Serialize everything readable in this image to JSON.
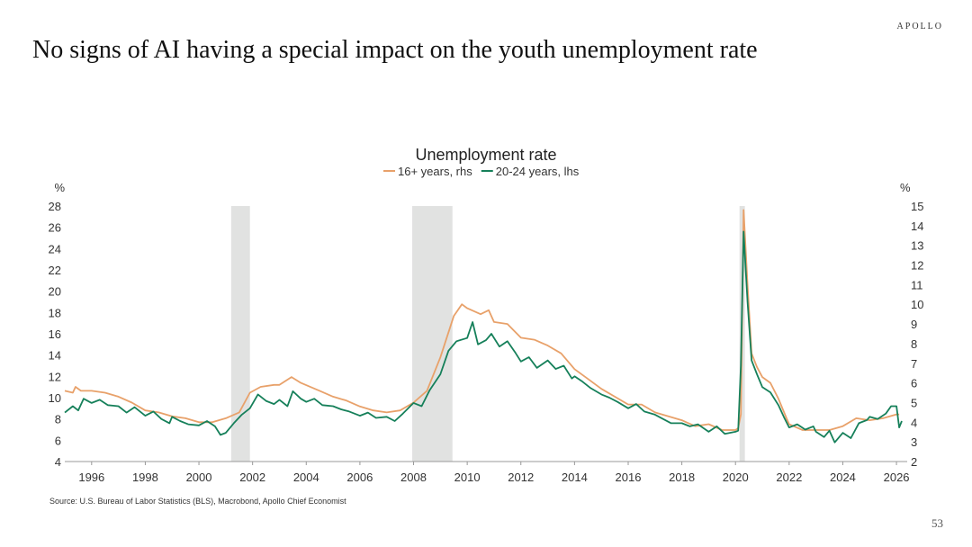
{
  "header": {
    "brand": "APOLLO",
    "title": "No signs of AI having a special impact on the youth unemployment rate"
  },
  "footer": {
    "source": "Source: U.S. Bureau of Labor Statistics (BLS), Macrobond, Apollo Chief Economist",
    "page_number": "53"
  },
  "colors": {
    "series_16plus": "#e8a16a",
    "series_20_24": "#16805a",
    "recession": "#e1e2e1",
    "axis": "#999999"
  },
  "chart_data": {
    "type": "line",
    "title": "Unemployment rate",
    "left_axis": {
      "unit": "%",
      "ticks": [
        4,
        6,
        8,
        10,
        12,
        14,
        16,
        18,
        20,
        22,
        24,
        26,
        28
      ],
      "ylim": [
        4,
        28
      ]
    },
    "right_axis": {
      "unit": "%",
      "ticks": [
        2,
        3,
        4,
        5,
        6,
        7,
        8,
        9,
        10,
        11,
        12,
        13,
        14,
        15
      ],
      "ylim": [
        2,
        15
      ]
    },
    "x_axis": {
      "ticks": [
        "1996",
        "1998",
        "2000",
        "2002",
        "2004",
        "2006",
        "2008",
        "2010",
        "2012",
        "2014",
        "2016",
        "2018",
        "2020",
        "2022",
        "2024",
        "2026"
      ],
      "xlim": [
        1995.0,
        2026.4
      ]
    },
    "recessions": [
      {
        "start": 2001.2,
        "end": 2001.9
      },
      {
        "start": 2007.95,
        "end": 2009.45
      },
      {
        "start": 2020.15,
        "end": 2020.35
      }
    ],
    "series": [
      {
        "name": "16+ years, rhs",
        "axis": "right",
        "points": [
          [
            1995.0,
            5.6
          ],
          [
            1995.3,
            5.5
          ],
          [
            1995.4,
            5.8
          ],
          [
            1995.6,
            5.6
          ],
          [
            1996.0,
            5.6
          ],
          [
            1996.5,
            5.5
          ],
          [
            1997.0,
            5.3
          ],
          [
            1997.5,
            5.0
          ],
          [
            1998.0,
            4.6
          ],
          [
            1998.5,
            4.5
          ],
          [
            1999.0,
            4.3
          ],
          [
            1999.5,
            4.2
          ],
          [
            2000.0,
            4.0
          ],
          [
            2000.5,
            4.0
          ],
          [
            2001.0,
            4.2
          ],
          [
            2001.5,
            4.5
          ],
          [
            2001.9,
            5.5
          ],
          [
            2002.3,
            5.8
          ],
          [
            2002.8,
            5.9
          ],
          [
            2003.0,
            5.9
          ],
          [
            2003.45,
            6.3
          ],
          [
            2003.8,
            6.0
          ],
          [
            2004.5,
            5.6
          ],
          [
            2005.0,
            5.3
          ],
          [
            2005.5,
            5.1
          ],
          [
            2006.0,
            4.8
          ],
          [
            2006.5,
            4.6
          ],
          [
            2007.0,
            4.5
          ],
          [
            2007.5,
            4.6
          ],
          [
            2008.0,
            5.0
          ],
          [
            2008.5,
            5.6
          ],
          [
            2009.0,
            7.3
          ],
          [
            2009.5,
            9.4
          ],
          [
            2009.8,
            10.0
          ],
          [
            2010.0,
            9.8
          ],
          [
            2010.5,
            9.5
          ],
          [
            2010.8,
            9.7
          ],
          [
            2011.0,
            9.1
          ],
          [
            2011.5,
            9.0
          ],
          [
            2012.0,
            8.3
          ],
          [
            2012.5,
            8.2
          ],
          [
            2013.0,
            7.9
          ],
          [
            2013.5,
            7.5
          ],
          [
            2014.0,
            6.7
          ],
          [
            2014.5,
            6.2
          ],
          [
            2015.0,
            5.7
          ],
          [
            2015.5,
            5.3
          ],
          [
            2016.0,
            4.9
          ],
          [
            2016.5,
            4.9
          ],
          [
            2017.0,
            4.5
          ],
          [
            2017.5,
            4.3
          ],
          [
            2018.0,
            4.1
          ],
          [
            2018.5,
            3.8
          ],
          [
            2019.0,
            3.9
          ],
          [
            2019.5,
            3.6
          ],
          [
            2020.0,
            3.6
          ],
          [
            2020.1,
            3.7
          ],
          [
            2020.2,
            4.4
          ],
          [
            2020.3,
            14.8
          ],
          [
            2020.45,
            11.0
          ],
          [
            2020.6,
            7.5
          ],
          [
            2020.8,
            6.8
          ],
          [
            2021.0,
            6.3
          ],
          [
            2021.3,
            6.0
          ],
          [
            2021.6,
            5.2
          ],
          [
            2021.9,
            4.2
          ],
          [
            2022.0,
            3.9
          ],
          [
            2022.5,
            3.6
          ],
          [
            2023.0,
            3.6
          ],
          [
            2023.5,
            3.6
          ],
          [
            2024.0,
            3.8
          ],
          [
            2024.5,
            4.2
          ],
          [
            2025.0,
            4.1
          ],
          [
            2025.5,
            4.2
          ],
          [
            2026.0,
            4.4
          ],
          [
            2026.1,
            4.4
          ]
        ]
      },
      {
        "name": "20-24 years, lhs",
        "axis": "left",
        "points": [
          [
            1995.0,
            8.6
          ],
          [
            1995.3,
            9.2
          ],
          [
            1995.5,
            8.8
          ],
          [
            1995.7,
            9.9
          ],
          [
            1996.0,
            9.5
          ],
          [
            1996.3,
            9.8
          ],
          [
            1996.6,
            9.3
          ],
          [
            1997.0,
            9.2
          ],
          [
            1997.3,
            8.6
          ],
          [
            1997.6,
            9.1
          ],
          [
            1998.0,
            8.3
          ],
          [
            1998.3,
            8.7
          ],
          [
            1998.6,
            8.0
          ],
          [
            1998.9,
            7.6
          ],
          [
            1999.0,
            8.2
          ],
          [
            1999.3,
            7.8
          ],
          [
            1999.6,
            7.5
          ],
          [
            2000.0,
            7.4
          ],
          [
            2000.3,
            7.8
          ],
          [
            2000.6,
            7.3
          ],
          [
            2000.8,
            6.5
          ],
          [
            2001.0,
            6.7
          ],
          [
            2001.3,
            7.6
          ],
          [
            2001.6,
            8.4
          ],
          [
            2001.9,
            9.0
          ],
          [
            2002.2,
            10.3
          ],
          [
            2002.5,
            9.7
          ],
          [
            2002.8,
            9.4
          ],
          [
            2003.0,
            9.8
          ],
          [
            2003.3,
            9.2
          ],
          [
            2003.5,
            10.6
          ],
          [
            2003.8,
            9.9
          ],
          [
            2004.0,
            9.6
          ],
          [
            2004.3,
            9.9
          ],
          [
            2004.6,
            9.3
          ],
          [
            2005.0,
            9.2
          ],
          [
            2005.3,
            8.9
          ],
          [
            2005.6,
            8.7
          ],
          [
            2006.0,
            8.3
          ],
          [
            2006.3,
            8.6
          ],
          [
            2006.6,
            8.1
          ],
          [
            2007.0,
            8.2
          ],
          [
            2007.3,
            7.8
          ],
          [
            2007.6,
            8.5
          ],
          [
            2008.0,
            9.5
          ],
          [
            2008.3,
            9.2
          ],
          [
            2008.6,
            10.7
          ],
          [
            2009.0,
            12.2
          ],
          [
            2009.3,
            14.4
          ],
          [
            2009.6,
            15.3
          ],
          [
            2010.0,
            15.6
          ],
          [
            2010.2,
            17.1
          ],
          [
            2010.4,
            15.0
          ],
          [
            2010.7,
            15.4
          ],
          [
            2010.9,
            16.0
          ],
          [
            2011.2,
            14.8
          ],
          [
            2011.5,
            15.3
          ],
          [
            2011.8,
            14.2
          ],
          [
            2012.0,
            13.4
          ],
          [
            2012.3,
            13.8
          ],
          [
            2012.6,
            12.8
          ],
          [
            2013.0,
            13.5
          ],
          [
            2013.3,
            12.7
          ],
          [
            2013.6,
            13.0
          ],
          [
            2013.9,
            11.8
          ],
          [
            2014.0,
            12.0
          ],
          [
            2014.3,
            11.5
          ],
          [
            2014.6,
            10.9
          ],
          [
            2015.0,
            10.3
          ],
          [
            2015.3,
            10.0
          ],
          [
            2015.6,
            9.6
          ],
          [
            2016.0,
            9.0
          ],
          [
            2016.3,
            9.4
          ],
          [
            2016.6,
            8.7
          ],
          [
            2017.0,
            8.4
          ],
          [
            2017.3,
            8.0
          ],
          [
            2017.6,
            7.6
          ],
          [
            2018.0,
            7.6
          ],
          [
            2018.3,
            7.3
          ],
          [
            2018.6,
            7.5
          ],
          [
            2019.0,
            6.8
          ],
          [
            2019.3,
            7.3
          ],
          [
            2019.6,
            6.6
          ],
          [
            2020.0,
            6.8
          ],
          [
            2020.1,
            6.9
          ],
          [
            2020.2,
            13.0
          ],
          [
            2020.3,
            25.6
          ],
          [
            2020.45,
            19.0
          ],
          [
            2020.6,
            13.5
          ],
          [
            2020.8,
            12.2
          ],
          [
            2021.0,
            11.0
          ],
          [
            2021.3,
            10.5
          ],
          [
            2021.6,
            9.3
          ],
          [
            2021.8,
            8.2
          ],
          [
            2022.0,
            7.2
          ],
          [
            2022.3,
            7.5
          ],
          [
            2022.6,
            7.0
          ],
          [
            2022.9,
            7.3
          ],
          [
            2023.0,
            6.8
          ],
          [
            2023.3,
            6.3
          ],
          [
            2023.5,
            6.9
          ],
          [
            2023.7,
            5.8
          ],
          [
            2024.0,
            6.7
          ],
          [
            2024.3,
            6.2
          ],
          [
            2024.6,
            7.6
          ],
          [
            2024.9,
            7.9
          ],
          [
            2025.0,
            8.2
          ],
          [
            2025.3,
            8.0
          ],
          [
            2025.6,
            8.5
          ],
          [
            2025.8,
            9.2
          ],
          [
            2026.0,
            9.2
          ],
          [
            2026.1,
            7.2
          ],
          [
            2026.2,
            7.8
          ]
        ]
      }
    ]
  }
}
